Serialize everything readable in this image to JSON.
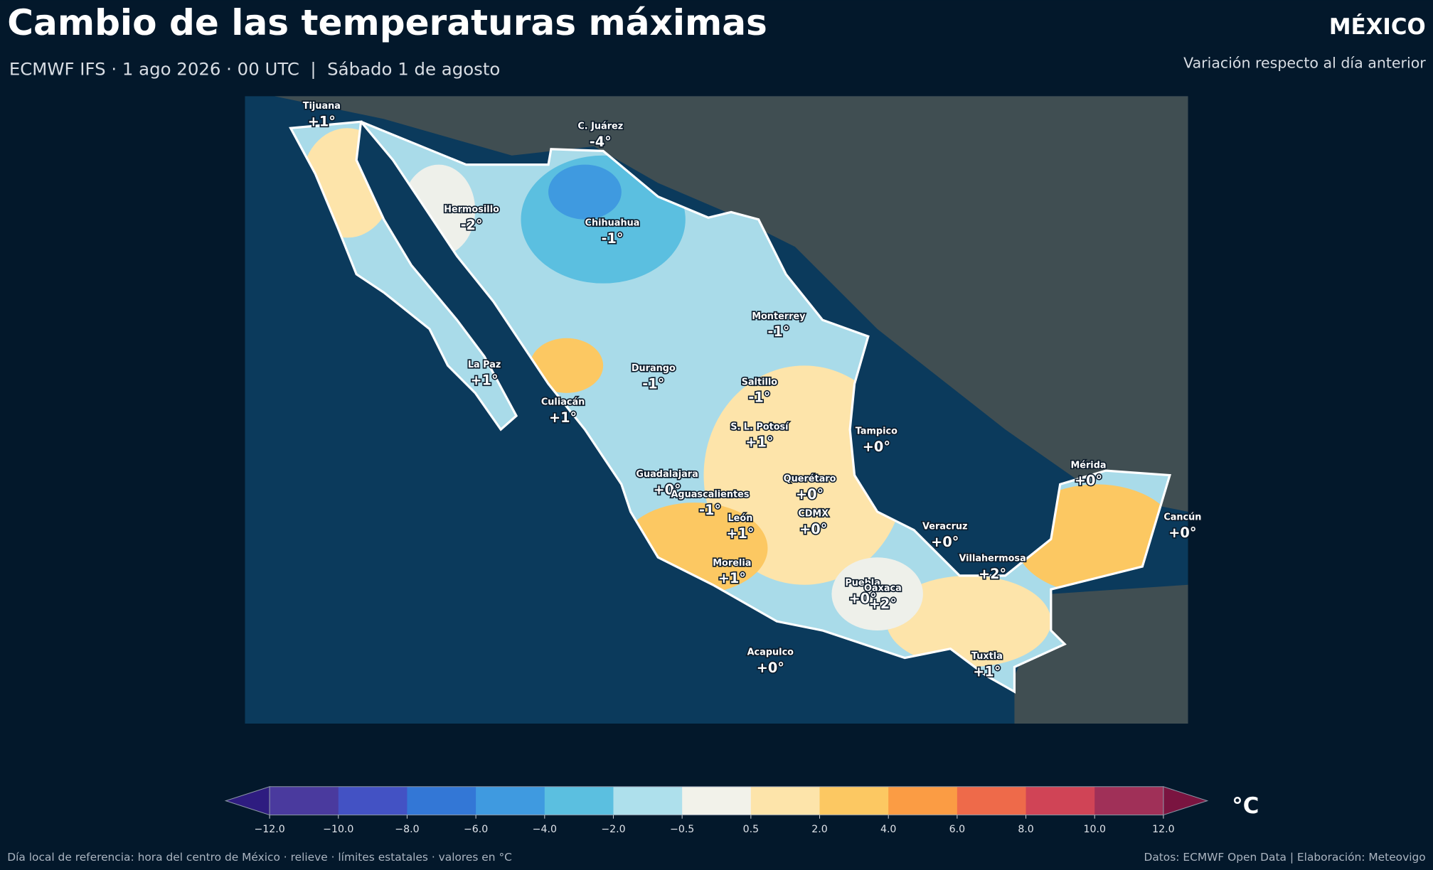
{
  "header": {
    "title": "Cambio de las temperaturas máximas",
    "subtitle": "ECMWF IFS · 1 ago 2026 · 00 UTC  |  Sábado 1 de agosto",
    "region": "MÉXICO",
    "description": "Variación respecto al día anterior"
  },
  "cities": [
    {
      "name": "Tijuana",
      "label": "+1°"
    },
    {
      "name": "C. Juárez",
      "label": "-4°"
    },
    {
      "name": "Hermosillo",
      "label": "-2°"
    },
    {
      "name": "Chihuahua",
      "label": "-1°"
    },
    {
      "name": "Monterrey",
      "label": "-1°"
    },
    {
      "name": "La Paz",
      "label": "+1°"
    },
    {
      "name": "Durango",
      "label": "-1°"
    },
    {
      "name": "Saltillo",
      "label": "-1°"
    },
    {
      "name": "Culiacán",
      "label": "+1°"
    },
    {
      "name": "S. L. Potosí",
      "label": "+1°"
    },
    {
      "name": "Tampico",
      "label": "+0°"
    },
    {
      "name": "Mérida",
      "label": "+0°"
    },
    {
      "name": "Guadalajara",
      "label": "+0°"
    },
    {
      "name": "Querétaro",
      "label": "+0°"
    },
    {
      "name": "Aguascalientes",
      "label": "-1°"
    },
    {
      "name": "CDMX",
      "label": "+0°"
    },
    {
      "name": "León",
      "label": "+1°"
    },
    {
      "name": "Cancún",
      "label": "+0°"
    },
    {
      "name": "Veracruz",
      "label": "+0°"
    },
    {
      "name": "Villahermosa",
      "label": "+2°"
    },
    {
      "name": "Morelia",
      "label": "+1°"
    },
    {
      "name": "Puebla",
      "label": "+0°"
    },
    {
      "name": "Oaxaca",
      "label": "+2°"
    },
    {
      "name": "Acapulco",
      "label": "+0°"
    },
    {
      "name": "Tuxtla",
      "label": "+1°"
    }
  ],
  "colorbar": {
    "unit": "°C",
    "ticks": [
      "−12.0",
      "−10.0",
      "−8.0",
      "−6.0",
      "−4.0",
      "−2.0",
      "−0.5",
      "0.5",
      "2.0",
      "4.0",
      "6.0",
      "8.0",
      "10.0",
      "12.0"
    ],
    "colors": [
      "#4a3a9e",
      "#4352c4",
      "#3377d6",
      "#3f9ae0",
      "#5bbfe0",
      "#aee0ec",
      "#f2f2ea",
      "#fde4aa",
      "#fcc862",
      "#fb9c44",
      "#ee6a4a",
      "#d04456",
      "#a03058"
    ],
    "under_color": "#2e1c80",
    "over_color": "#7a1440"
  },
  "footer": {
    "left": "Día local de referencia: hora del centro de México · relieve · límites estatales · valores en °C",
    "right": "Datos: ECMWF Open Data | Elaboración: Meteovigo"
  }
}
